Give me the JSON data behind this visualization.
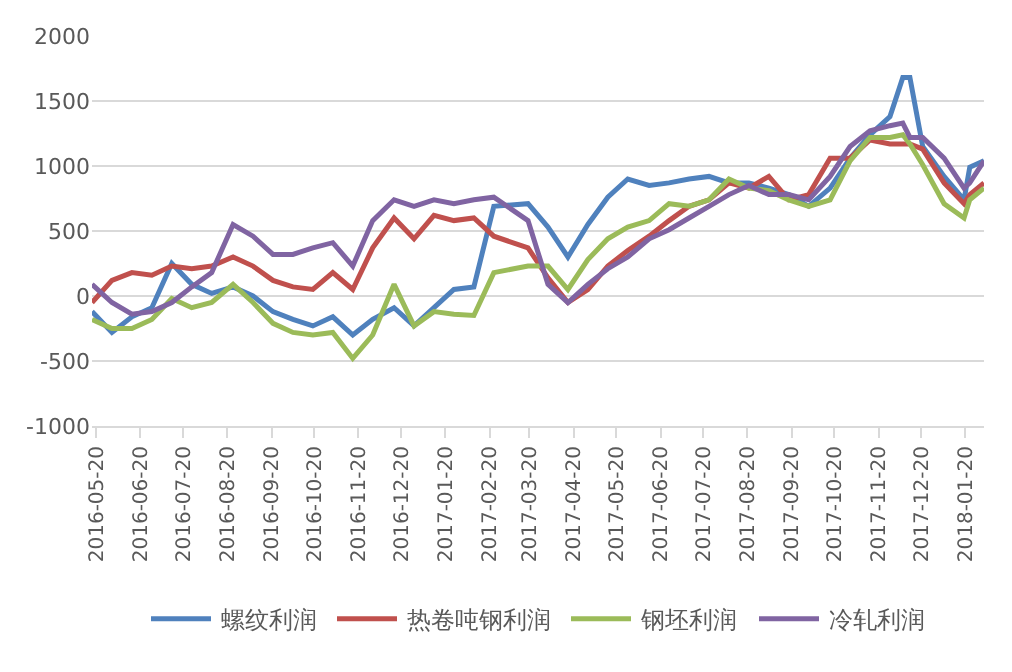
{
  "chart_data": {
    "type": "line",
    "x": [
      "2016-05-17",
      "2016-05-31",
      "2016-06-14",
      "2016-06-28",
      "2016-07-12",
      "2016-07-26",
      "2016-08-09",
      "2016-08-24",
      "2016-09-07",
      "2016-09-21",
      "2016-10-05",
      "2016-10-19",
      "2016-11-02",
      "2016-11-16",
      "2016-11-30",
      "2016-12-15",
      "2016-12-29",
      "2017-01-12",
      "2017-01-26",
      "2017-02-09",
      "2017-02-23",
      "2017-03-19",
      "2017-04-02",
      "2017-04-16",
      "2017-04-30",
      "2017-05-14",
      "2017-05-28",
      "2017-06-12",
      "2017-06-26",
      "2017-07-10",
      "2017-07-24",
      "2017-08-07",
      "2017-08-21",
      "2017-09-04",
      "2017-09-18",
      "2017-10-02",
      "2017-10-17",
      "2017-10-31",
      "2017-11-14",
      "2017-11-28",
      "2017-12-07",
      "2017-12-12",
      "2017-12-21",
      "2018-01-05",
      "2018-01-19",
      "2018-01-23",
      "2018-02-02"
    ],
    "series": [
      {
        "name": "螺纹利润",
        "color": "#4f81bd",
        "values": [
          -120,
          -280,
          -160,
          -90,
          250,
          90,
          20,
          70,
          0,
          -120,
          -180,
          -230,
          -160,
          -300,
          -180,
          -90,
          -230,
          -90,
          50,
          70,
          690,
          710,
          530,
          300,
          550,
          760,
          900,
          850,
          870,
          900,
          920,
          870,
          870,
          830,
          780,
          690,
          830,
          1060,
          1240,
          1380,
          1680,
          1680,
          1150,
          920,
          740,
          990,
          1040
        ]
      },
      {
        "name": "热卷吨钢利润",
        "color": "#c0504d",
        "values": [
          -50,
          120,
          180,
          160,
          230,
          210,
          230,
          300,
          230,
          120,
          70,
          50,
          180,
          50,
          370,
          600,
          440,
          620,
          580,
          600,
          460,
          370,
          140,
          -50,
          50,
          230,
          350,
          460,
          580,
          690,
          740,
          870,
          830,
          920,
          740,
          780,
          1060,
          1060,
          1200,
          1170,
          1170,
          1170,
          1130,
          870,
          710,
          780,
          870
        ]
      },
      {
        "name": "钢坯利润",
        "color": "#9bbb59",
        "values": [
          -180,
          -250,
          -250,
          -180,
          -20,
          -90,
          -50,
          90,
          -50,
          -210,
          -280,
          -300,
          -280,
          -480,
          -300,
          90,
          -230,
          -120,
          -140,
          -150,
          180,
          230,
          230,
          50,
          280,
          440,
          530,
          580,
          710,
          690,
          740,
          900,
          830,
          810,
          740,
          690,
          740,
          1040,
          1220,
          1220,
          1240,
          1170,
          1010,
          710,
          600,
          740,
          830
        ]
      },
      {
        "name": "冷轧利润",
        "color": "#8064a2",
        "values": [
          90,
          -50,
          -140,
          -120,
          -50,
          70,
          180,
          550,
          460,
          320,
          320,
          370,
          410,
          230,
          580,
          740,
          690,
          740,
          710,
          740,
          760,
          580,
          90,
          -50,
          90,
          210,
          300,
          440,
          510,
          600,
          690,
          780,
          850,
          780,
          780,
          740,
          920,
          1150,
          1270,
          1310,
          1330,
          1220,
          1220,
          1060,
          830,
          870,
          1040
        ]
      }
    ],
    "xlim": [
      "2016-05-17",
      "2018-02-02"
    ],
    "xticks": [
      "2016-05-20",
      "2016-06-20",
      "2016-07-20",
      "2016-08-20",
      "2016-09-20",
      "2016-10-20",
      "2016-11-20",
      "2016-12-20",
      "2017-01-20",
      "2017-02-20",
      "2017-03-20",
      "2017-04-20",
      "2017-05-20",
      "2017-06-20",
      "2017-07-20",
      "2017-08-20",
      "2017-09-20",
      "2017-10-20",
      "2017-11-20",
      "2017-12-20",
      "2018-01-20"
    ],
    "ylim": [
      -1000,
      2000
    ],
    "yticks": [
      -1000,
      -500,
      0,
      500,
      1000,
      1500,
      2000
    ],
    "grid": "y",
    "legend": "bottom",
    "marker": "none",
    "line_style": "solid"
  }
}
